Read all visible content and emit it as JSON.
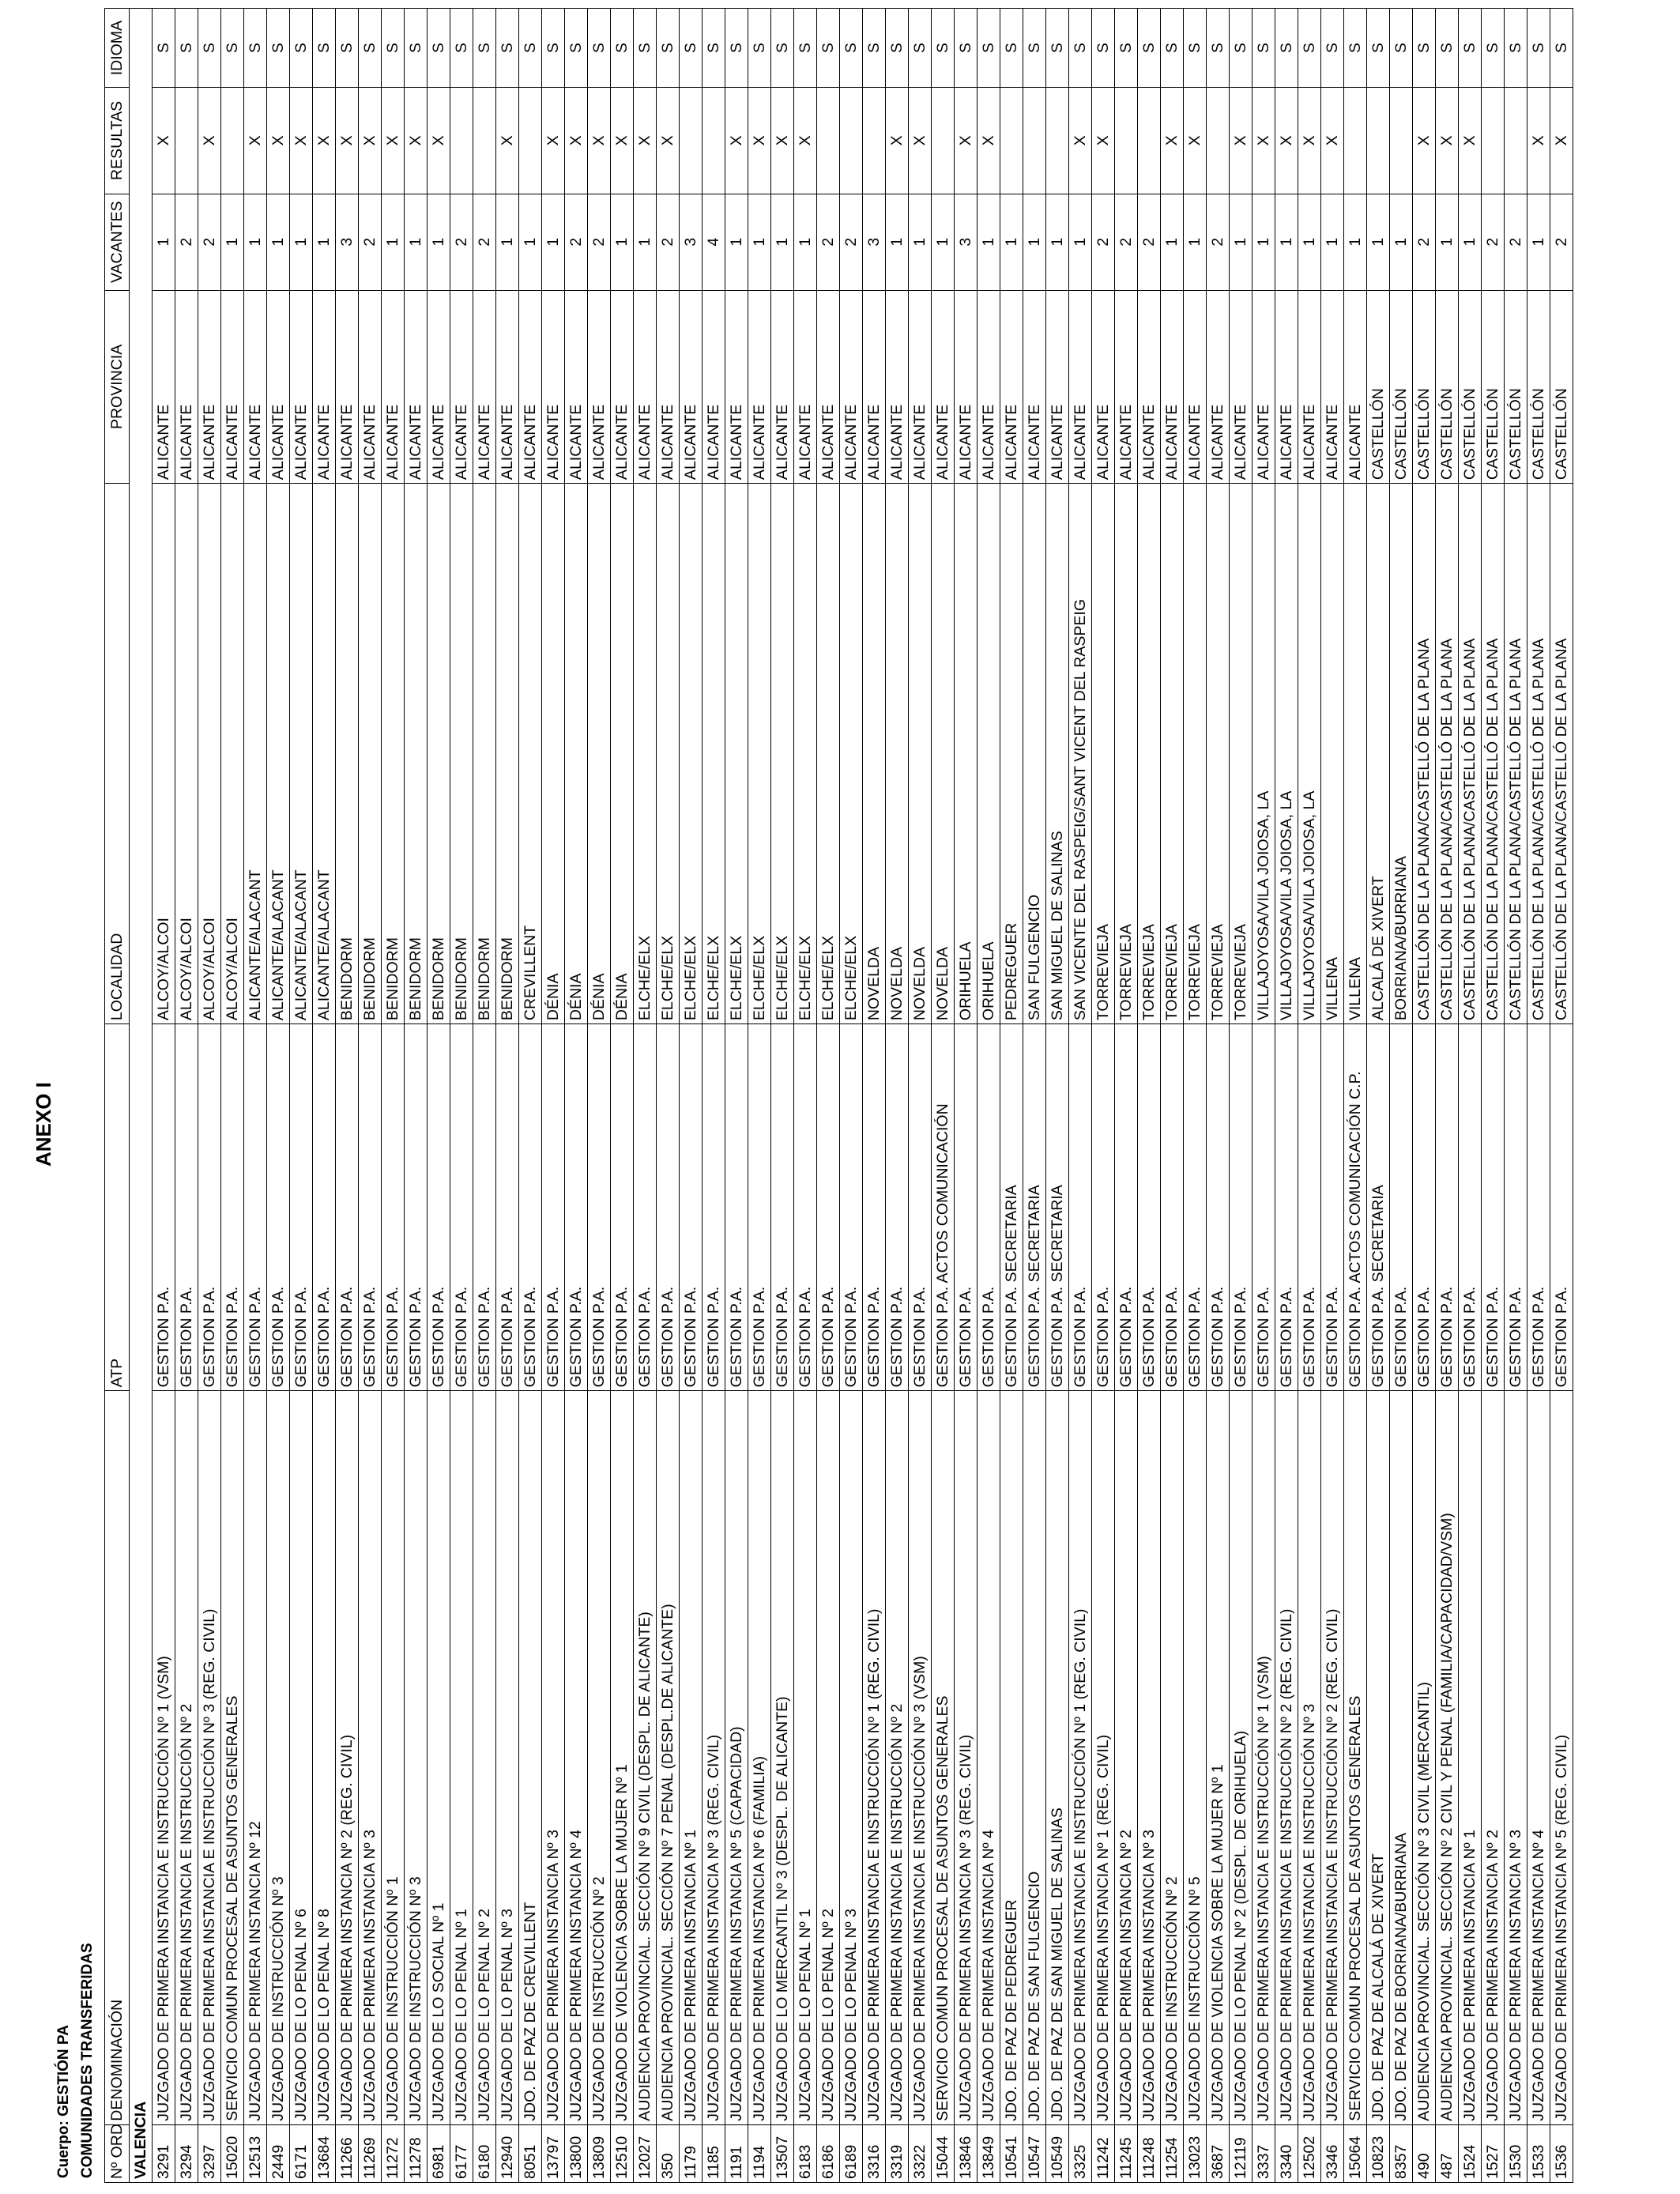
{
  "title": "ANEXO I",
  "cuerpo": "Cuerpo: GESTIÓN PA",
  "section": "COMUNIDADES TRANSFERIDAS",
  "columns": [
    "Nº ORDEN",
    "DENOMINACIÓN",
    "ATP",
    "LOCALIDAD",
    "PROVINCIA",
    "VACANTES",
    "RESULTAS",
    "IDIOMA"
  ],
  "region": "VALENCIA",
  "rows": [
    [
      "3291",
      "JUZGADO DE PRIMERA INSTANCIA E INSTRUCCIÓN Nº 1 (VSM)",
      "GESTION P.A.",
      "ALCOY/ALCOI",
      "ALICANTE",
      "1",
      "X",
      "S"
    ],
    [
      "3294",
      "JUZGADO DE PRIMERA INSTANCIA E INSTRUCCIÓN Nº 2",
      "GESTION P.A.",
      "ALCOY/ALCOI",
      "ALICANTE",
      "2",
      "",
      "S"
    ],
    [
      "3297",
      "JUZGADO DE PRIMERA INSTANCIA E INSTRUCCIÓN Nº 3 (REG. CIVIL)",
      "GESTION P.A.",
      "ALCOY/ALCOI",
      "ALICANTE",
      "2",
      "X",
      "S"
    ],
    [
      "15020",
      "SERVICIO COMUN PROCESAL DE ASUNTOS GENERALES",
      "GESTION P.A.",
      "ALCOY/ALCOI",
      "ALICANTE",
      "1",
      "",
      "S"
    ],
    [
      "12513",
      "JUZGADO DE PRIMERA INSTANCIA Nº 12",
      "GESTION P.A.",
      "ALICANTE/ALACANT",
      "ALICANTE",
      "1",
      "X",
      "S"
    ],
    [
      "2449",
      "JUZGADO DE INSTRUCCIÓN Nº 3",
      "GESTION P.A.",
      "ALICANTE/ALACANT",
      "ALICANTE",
      "1",
      "X",
      "S"
    ],
    [
      "6171",
      "JUZGADO DE LO PENAL Nº 6",
      "GESTION P.A.",
      "ALICANTE/ALACANT",
      "ALICANTE",
      "1",
      "X",
      "S"
    ],
    [
      "13684",
      "JUZGADO DE LO PENAL Nº 8",
      "GESTION P.A.",
      "ALICANTE/ALACANT",
      "ALICANTE",
      "1",
      "X",
      "S"
    ],
    [
      "11266",
      "JUZGADO DE PRIMERA INSTANCIA Nº 2 (REG. CIVIL)",
      "GESTION P.A.",
      "BENIDORM",
      "ALICANTE",
      "3",
      "X",
      "S"
    ],
    [
      "11269",
      "JUZGADO DE PRIMERA INSTANCIA Nº 3",
      "GESTION P.A.",
      "BENIDORM",
      "ALICANTE",
      "2",
      "X",
      "S"
    ],
    [
      "11272",
      "JUZGADO DE INSTRUCCIÓN Nº 1",
      "GESTION P.A.",
      "BENIDORM",
      "ALICANTE",
      "1",
      "X",
      "S"
    ],
    [
      "11278",
      "JUZGADO DE INSTRUCCIÓN Nº 3",
      "GESTION P.A.",
      "BENIDORM",
      "ALICANTE",
      "1",
      "X",
      "S"
    ],
    [
      "6981",
      "JUZGADO DE LO SOCIAL Nº 1",
      "GESTION P.A.",
      "BENIDORM",
      "ALICANTE",
      "1",
      "X",
      "S"
    ],
    [
      "6177",
      "JUZGADO DE LO PENAL Nº 1",
      "GESTION P.A.",
      "BENIDORM",
      "ALICANTE",
      "2",
      "",
      "S"
    ],
    [
      "6180",
      "JUZGADO DE LO PENAL Nº 2",
      "GESTION P.A.",
      "BENIDORM",
      "ALICANTE",
      "2",
      "",
      "S"
    ],
    [
      "12940",
      "JUZGADO DE LO PENAL Nº 3",
      "GESTION P.A.",
      "BENIDORM",
      "ALICANTE",
      "1",
      "X",
      "S"
    ],
    [
      "8051",
      "JDO. DE PAZ DE CREVILLENT",
      "GESTION P.A.",
      "CREVILLENT",
      "ALICANTE",
      "1",
      "",
      "S"
    ],
    [
      "13797",
      "JUZGADO DE PRIMERA INSTANCIA Nº 3",
      "GESTION P.A.",
      "DÉNIA",
      "ALICANTE",
      "1",
      "X",
      "S"
    ],
    [
      "13800",
      "JUZGADO DE PRIMERA INSTANCIA Nº 4",
      "GESTION P.A.",
      "DÉNIA",
      "ALICANTE",
      "2",
      "X",
      "S"
    ],
    [
      "13809",
      "JUZGADO DE INSTRUCCIÓN Nº 2",
      "GESTION P.A.",
      "DÉNIA",
      "ALICANTE",
      "2",
      "X",
      "S"
    ],
    [
      "12510",
      "JUZGADO DE VIOLENCIA SOBRE LA MUJER Nº 1",
      "GESTION P.A.",
      "DÉNIA",
      "ALICANTE",
      "1",
      "X",
      "S"
    ],
    [
      "12027",
      "AUDIENCIA PROVINCIAL. SECCIÓN Nº 9 CIVIL (DESPL. DE ALICANTE)",
      "GESTION P.A.",
      "ELCHE/ELX",
      "ALICANTE",
      "1",
      "X",
      "S"
    ],
    [
      "350",
      "AUDIENCIA PROVINCIAL. SECCIÓN Nº 7 PENAL (DESPL.DE ALICANTE)",
      "GESTION P.A.",
      "ELCHE/ELX",
      "ALICANTE",
      "2",
      "X",
      "S"
    ],
    [
      "1179",
      "JUZGADO DE PRIMERA INSTANCIA Nº 1",
      "GESTION P.A.",
      "ELCHE/ELX",
      "ALICANTE",
      "3",
      "",
      "S"
    ],
    [
      "1185",
      "JUZGADO DE PRIMERA INSTANCIA Nº 3 (REG. CIVIL)",
      "GESTION P.A.",
      "ELCHE/ELX",
      "ALICANTE",
      "4",
      "",
      "S"
    ],
    [
      "1191",
      "JUZGADO DE PRIMERA INSTANCIA Nº 5 (CAPACIDAD)",
      "GESTION P.A.",
      "ELCHE/ELX",
      "ALICANTE",
      "1",
      "X",
      "S"
    ],
    [
      "1194",
      "JUZGADO DE PRIMERA INSTANCIA Nº 6 (FAMILIA)",
      "GESTION P.A.",
      "ELCHE/ELX",
      "ALICANTE",
      "1",
      "X",
      "S"
    ],
    [
      "13507",
      "JUZGADO DE LO MERCANTIL Nº 3 (DESPL. DE ALICANTE)",
      "GESTION P.A.",
      "ELCHE/ELX",
      "ALICANTE",
      "1",
      "X",
      "S"
    ],
    [
      "6183",
      "JUZGADO DE LO PENAL Nº 1",
      "GESTION P.A.",
      "ELCHE/ELX",
      "ALICANTE",
      "1",
      "X",
      "S"
    ],
    [
      "6186",
      "JUZGADO DE LO PENAL Nº 2",
      "GESTION P.A.",
      "ELCHE/ELX",
      "ALICANTE",
      "2",
      "",
      "S"
    ],
    [
      "6189",
      "JUZGADO DE LO PENAL Nº 3",
      "GESTION P.A.",
      "ELCHE/ELX",
      "ALICANTE",
      "2",
      "",
      "S"
    ],
    [
      "3316",
      "JUZGADO DE PRIMERA INSTANCIA E INSTRUCCIÓN Nº 1 (REG. CIVIL)",
      "GESTION P.A.",
      "NOVELDA",
      "ALICANTE",
      "3",
      "",
      "S"
    ],
    [
      "3319",
      "JUZGADO DE PRIMERA INSTANCIA E INSTRUCCIÓN Nº 2",
      "GESTION P.A.",
      "NOVELDA",
      "ALICANTE",
      "1",
      "X",
      "S"
    ],
    [
      "3322",
      "JUZGADO DE PRIMERA INSTANCIA E INSTRUCCIÓN Nº 3 (VSM)",
      "GESTION P.A.",
      "NOVELDA",
      "ALICANTE",
      "1",
      "X",
      "S"
    ],
    [
      "15044",
      "SERVICIO COMUN PROCESAL DE ASUNTOS GENERALES",
      "GESTION P.A. ACTOS COMUNICACIÓN",
      "NOVELDA",
      "ALICANTE",
      "1",
      "",
      "S"
    ],
    [
      "13846",
      "JUZGADO DE PRIMERA INSTANCIA Nº 3 (REG. CIVIL)",
      "GESTION P.A.",
      "ORIHUELA",
      "ALICANTE",
      "3",
      "X",
      "S"
    ],
    [
      "13849",
      "JUZGADO DE PRIMERA INSTANCIA Nº 4",
      "GESTION P.A.",
      "ORIHUELA",
      "ALICANTE",
      "1",
      "X",
      "S"
    ],
    [
      "10541",
      "JDO. DE PAZ DE PEDREGUER",
      "GESTION P.A. SECRETARIA",
      "PEDREGUER",
      "ALICANTE",
      "1",
      "",
      "S"
    ],
    [
      "10547",
      "JDO. DE PAZ DE SAN FULGENCIO",
      "GESTION P.A. SECRETARIA",
      "SAN FULGENCIO",
      "ALICANTE",
      "1",
      "",
      "S"
    ],
    [
      "10549",
      "JDO. DE PAZ DE SAN MIGUEL DE SALINAS",
      "GESTION P.A. SECRETARIA",
      "SAN MIGUEL DE SALINAS",
      "ALICANTE",
      "1",
      "",
      "S"
    ],
    [
      "3325",
      "JUZGADO DE PRIMERA INSTANCIA E INSTRUCCIÓN Nº 1 (REG. CIVIL)",
      "GESTION P.A.",
      "SAN VICENTE DEL RASPEIG/SANT VICENT DEL RASPEIG",
      "ALICANTE",
      "1",
      "X",
      "S"
    ],
    [
      "11242",
      "JUZGADO DE PRIMERA INSTANCIA Nº 1 (REG. CIVIL)",
      "GESTION P.A.",
      "TORREVIEJA",
      "ALICANTE",
      "2",
      "X",
      "S"
    ],
    [
      "11245",
      "JUZGADO DE PRIMERA INSTANCIA Nº 2",
      "GESTION P.A.",
      "TORREVIEJA",
      "ALICANTE",
      "2",
      "",
      "S"
    ],
    [
      "11248",
      "JUZGADO DE PRIMERA INSTANCIA Nº 3",
      "GESTION P.A.",
      "TORREVIEJA",
      "ALICANTE",
      "2",
      "",
      "S"
    ],
    [
      "11254",
      "JUZGADO DE INSTRUCCIÓN Nº 2",
      "GESTION P.A.",
      "TORREVIEJA",
      "ALICANTE",
      "1",
      "X",
      "S"
    ],
    [
      "13023",
      "JUZGADO DE INSTRUCCIÓN Nº 5",
      "GESTION P.A.",
      "TORREVIEJA",
      "ALICANTE",
      "1",
      "X",
      "S"
    ],
    [
      "3687",
      "JUZGADO DE VIOLENCIA SOBRE LA MUJER Nº 1",
      "GESTION P.A.",
      "TORREVIEJA",
      "ALICANTE",
      "2",
      "",
      "S"
    ],
    [
      "12119",
      "JUZGADO DE LO PENAL Nº 2 (DESPL. DE ORIHUELA)",
      "GESTION P.A.",
      "TORREVIEJA",
      "ALICANTE",
      "1",
      "X",
      "S"
    ],
    [
      "3337",
      "JUZGADO DE PRIMERA INSTANCIA E INSTRUCCIÓN Nº 1 (VSM)",
      "GESTION P.A.",
      "VILLAJOYOSA/VILA JOIOSA, LA",
      "ALICANTE",
      "1",
      "X",
      "S"
    ],
    [
      "3340",
      "JUZGADO DE PRIMERA INSTANCIA E INSTRUCCIÓN Nº 2 (REG. CIVIL)",
      "GESTION P.A.",
      "VILLAJOYOSA/VILA JOIOSA, LA",
      "ALICANTE",
      "1",
      "X",
      "S"
    ],
    [
      "12502",
      "JUZGADO DE PRIMERA INSTANCIA E INSTRUCCIÓN Nº 3",
      "GESTION P.A.",
      "VILLAJOYOSA/VILA JOIOSA, LA",
      "ALICANTE",
      "1",
      "X",
      "S"
    ],
    [
      "3346",
      "JUZGADO DE PRIMERA INSTANCIA E INSTRUCCIÓN Nº 2 (REG. CIVIL)",
      "GESTION P.A.",
      "VILLENA",
      "ALICANTE",
      "1",
      "X",
      "S"
    ],
    [
      "15064",
      "SERVICIO COMUN PROCESAL DE ASUNTOS GENERALES",
      "GESTION P.A. ACTOS COMUNICACIÓN C.P.",
      "VILLENA",
      "ALICANTE",
      "1",
      "",
      "S"
    ],
    [
      "10823",
      "JDO. DE PAZ DE ALCALÁ DE XIVERT",
      "GESTION P.A. SECRETARIA",
      "ALCALÁ DE XIVERT",
      "CASTELLÓN",
      "1",
      "",
      "S"
    ],
    [
      "8357",
      "JDO. DE PAZ DE BORRIANA/BURRIANA",
      "GESTION P.A.",
      "BORRIANA/BURRIANA",
      "CASTELLÓN",
      "1",
      "",
      "S"
    ],
    [
      "490",
      "AUDIENCIA PROVINCIAL. SECCIÓN Nº 3 CIVIL (MERCANTIL)",
      "GESTION P.A.",
      "CASTELLÓN DE LA PLANA/CASTELLÓ DE LA PLANA",
      "CASTELLÓN",
      "2",
      "X",
      "S"
    ],
    [
      "487",
      "AUDIENCIA PROVINCIAL. SECCIÓN Nº 2 CIVIL Y PENAL (FAMILIA/CAPACIDAD/VSM)",
      "GESTION P.A.",
      "CASTELLÓN DE LA PLANA/CASTELLÓ DE LA PLANA",
      "CASTELLÓN",
      "1",
      "X",
      "S"
    ],
    [
      "1524",
      "JUZGADO DE PRIMERA INSTANCIA Nº 1",
      "GESTION P.A.",
      "CASTELLÓN DE LA PLANA/CASTELLÓ DE LA PLANA",
      "CASTELLÓN",
      "1",
      "X",
      "S"
    ],
    [
      "1527",
      "JUZGADO DE PRIMERA INSTANCIA Nº 2",
      "GESTION P.A.",
      "CASTELLÓN DE LA PLANA/CASTELLÓ DE LA PLANA",
      "CASTELLÓN",
      "2",
      "",
      "S"
    ],
    [
      "1530",
      "JUZGADO DE PRIMERA INSTANCIA Nº 3",
      "GESTION P.A.",
      "CASTELLÓN DE LA PLANA/CASTELLÓ DE LA PLANA",
      "CASTELLÓN",
      "2",
      "",
      "S"
    ],
    [
      "1533",
      "JUZGADO DE PRIMERA INSTANCIA Nº 4",
      "GESTION P.A.",
      "CASTELLÓN DE LA PLANA/CASTELLÓ DE LA PLANA",
      "CASTELLÓN",
      "1",
      "X",
      "S"
    ],
    [
      "1536",
      "JUZGADO DE PRIMERA INSTANCIA Nº 5 (REG. CIVIL)",
      "GESTION P.A.",
      "CASTELLÓN DE LA PLANA/CASTELLÓ DE LA PLANA",
      "CASTELLÓN",
      "2",
      "X",
      "S"
    ]
  ]
}
